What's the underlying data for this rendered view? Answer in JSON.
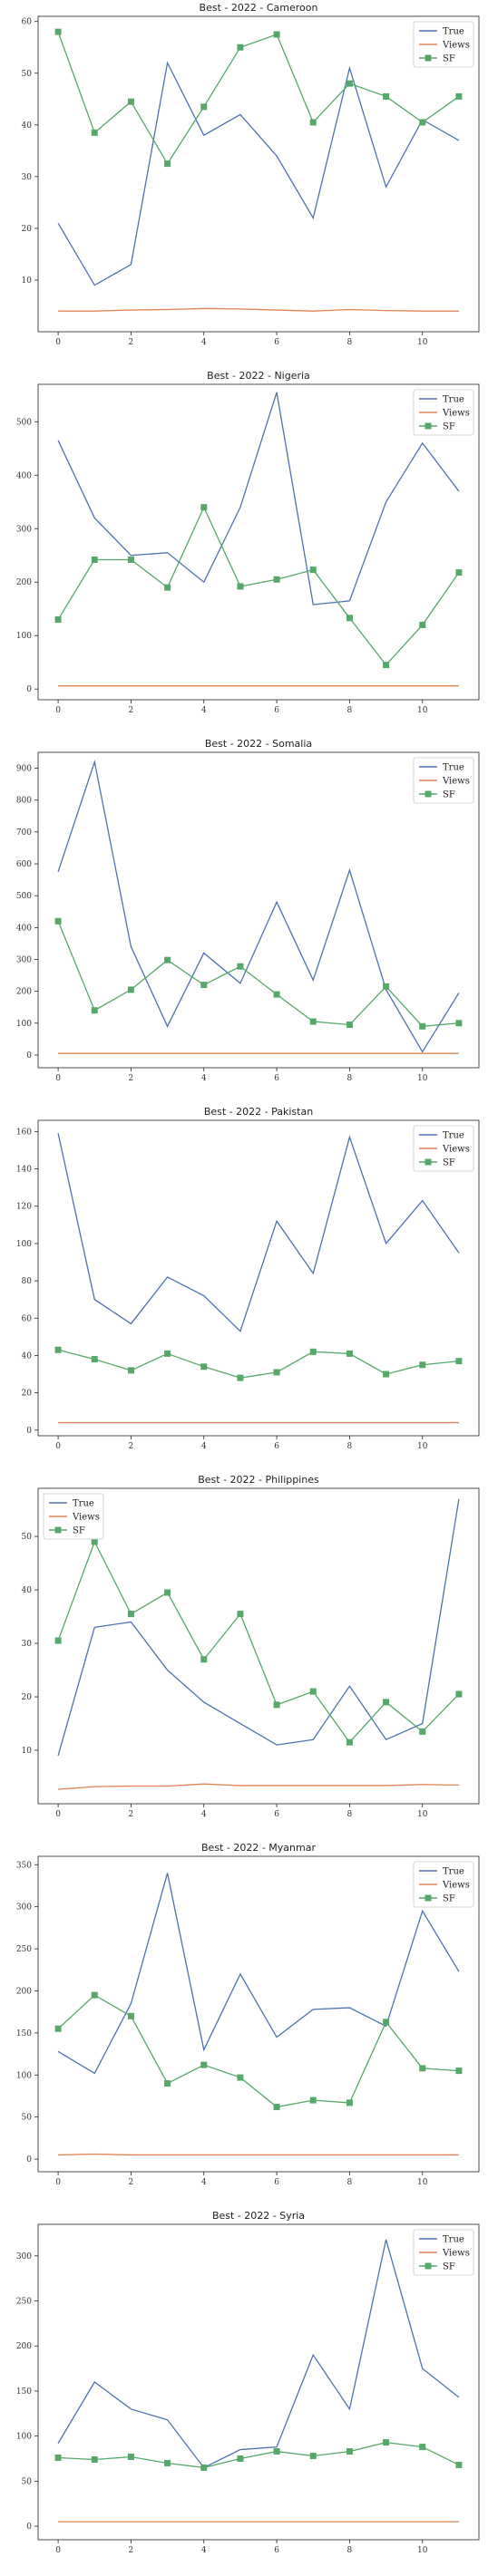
{
  "colors": {
    "True": "#4c72b0",
    "Views": "#dd8452",
    "SF": "#55a868"
  },
  "chart_data": [
    {
      "type": "line",
      "title": "Best - 2022 - Cameroon",
      "x": [
        0,
        1,
        2,
        3,
        4,
        5,
        6,
        7,
        8,
        9,
        10,
        11
      ],
      "xticks": [
        0,
        2,
        4,
        6,
        8,
        10
      ],
      "yticks": [
        10,
        20,
        30,
        40,
        50,
        60
      ],
      "ylim": [
        0,
        61
      ],
      "legend": "top-right",
      "series": [
        {
          "name": "True",
          "values": [
            21,
            9,
            13,
            52,
            38,
            42,
            34,
            22,
            51,
            28,
            41,
            37
          ]
        },
        {
          "name": "Views",
          "values": [
            4,
            4,
            4.2,
            4.3,
            4.5,
            4.4,
            4.2,
            4,
            4.3,
            4.1,
            4,
            4
          ]
        },
        {
          "name": "SF",
          "values": [
            58,
            38.5,
            44.5,
            32.5,
            43.5,
            55,
            57.5,
            40.5,
            48,
            45.5,
            40.5,
            45.5
          ]
        }
      ]
    },
    {
      "type": "line",
      "title": "Best - 2022 - Nigeria",
      "x": [
        0,
        1,
        2,
        3,
        4,
        5,
        6,
        7,
        8,
        9,
        10,
        11
      ],
      "xticks": [
        0,
        2,
        4,
        6,
        8,
        10
      ],
      "yticks": [
        0,
        100,
        200,
        300,
        400,
        500
      ],
      "ylim": [
        -20,
        570
      ],
      "legend": "top-right",
      "series": [
        {
          "name": "True",
          "values": [
            465,
            320,
            250,
            255,
            200,
            340,
            555,
            158,
            165,
            350,
            460,
            370
          ]
        },
        {
          "name": "Views",
          "values": [
            6,
            6,
            6,
            6,
            6,
            6,
            6,
            6,
            6,
            6,
            6,
            6
          ]
        },
        {
          "name": "SF",
          "values": [
            130,
            242,
            242,
            190,
            340,
            192,
            205,
            223,
            133,
            45,
            120,
            218
          ]
        }
      ]
    },
    {
      "type": "line",
      "title": "Best - 2022 - Somalia",
      "x": [
        0,
        1,
        2,
        3,
        4,
        5,
        6,
        7,
        8,
        9,
        10,
        11
      ],
      "xticks": [
        0,
        2,
        4,
        6,
        8,
        10
      ],
      "yticks": [
        0,
        100,
        200,
        300,
        400,
        500,
        600,
        700,
        800,
        900
      ],
      "ylim": [
        -40,
        950
      ],
      "legend": "top-right",
      "series": [
        {
          "name": "True",
          "values": [
            575,
            920,
            340,
            90,
            320,
            225,
            480,
            235,
            580,
            205,
            10,
            195
          ]
        },
        {
          "name": "Views",
          "values": [
            5,
            5,
            5,
            5,
            5,
            5,
            5,
            5,
            5,
            5,
            5,
            5
          ]
        },
        {
          "name": "SF",
          "values": [
            420,
            140,
            205,
            298,
            220,
            278,
            190,
            105,
            95,
            215,
            90,
            100
          ]
        }
      ]
    },
    {
      "type": "line",
      "title": "Best - 2022 - Pakistan",
      "x": [
        0,
        1,
        2,
        3,
        4,
        5,
        6,
        7,
        8,
        9,
        10,
        11
      ],
      "xticks": [
        0,
        2,
        4,
        6,
        8,
        10
      ],
      "yticks": [
        0,
        20,
        40,
        60,
        80,
        100,
        120,
        140,
        160
      ],
      "ylim": [
        -3,
        166
      ],
      "legend": "top-right",
      "series": [
        {
          "name": "True",
          "values": [
            159,
            70,
            57,
            82,
            72,
            53,
            112,
            84,
            157,
            100,
            123,
            95
          ]
        },
        {
          "name": "Views",
          "values": [
            4,
            4,
            4,
            4,
            4,
            4,
            4,
            4,
            4,
            4,
            4,
            4
          ]
        },
        {
          "name": "SF",
          "values": [
            43,
            38,
            32,
            41,
            34,
            28,
            31,
            42,
            41,
            30,
            35,
            37
          ]
        }
      ]
    },
    {
      "type": "line",
      "title": "Best - 2022 - Philippines",
      "x": [
        0,
        1,
        2,
        3,
        4,
        5,
        6,
        7,
        8,
        9,
        10,
        11
      ],
      "xticks": [
        0,
        2,
        4,
        6,
        8,
        10
      ],
      "yticks": [
        10,
        20,
        30,
        40,
        50
      ],
      "ylim": [
        0,
        59
      ],
      "legend": "top-left",
      "series": [
        {
          "name": "True",
          "values": [
            9,
            33,
            34,
            25,
            19,
            15,
            11,
            12,
            22,
            12,
            15,
            57
          ]
        },
        {
          "name": "Views",
          "values": [
            2.7,
            3.2,
            3.3,
            3.3,
            3.7,
            3.4,
            3.4,
            3.4,
            3.4,
            3.4,
            3.6,
            3.5
          ]
        },
        {
          "name": "SF",
          "values": [
            30.5,
            49,
            35.5,
            39.5,
            27,
            35.5,
            18.5,
            21,
            11.5,
            19,
            13.5,
            20.5
          ]
        }
      ]
    },
    {
      "type": "line",
      "title": "Best - 2022 - Myanmar",
      "x": [
        0,
        1,
        2,
        3,
        4,
        5,
        6,
        7,
        8,
        9,
        10,
        11
      ],
      "xticks": [
        0,
        2,
        4,
        6,
        8,
        10
      ],
      "yticks": [
        0,
        50,
        100,
        150,
        200,
        250,
        300,
        350
      ],
      "ylim": [
        -15,
        360
      ],
      "legend": "top-right",
      "series": [
        {
          "name": "True",
          "values": [
            128,
            102,
            185,
            340,
            130,
            220,
            145,
            178,
            180,
            158,
            295,
            223
          ]
        },
        {
          "name": "Views",
          "values": [
            5,
            6,
            5,
            5,
            5,
            5,
            5,
            5,
            5,
            5,
            5,
            5
          ]
        },
        {
          "name": "SF",
          "values": [
            155,
            195,
            170,
            90,
            112,
            97,
            62,
            70,
            67,
            163,
            108,
            105
          ]
        }
      ]
    },
    {
      "type": "line",
      "title": "Best - 2022 - Syria",
      "x": [
        0,
        1,
        2,
        3,
        4,
        5,
        6,
        7,
        8,
        9,
        10,
        11
      ],
      "xticks": [
        0,
        2,
        4,
        6,
        8,
        10
      ],
      "yticks": [
        0,
        50,
        100,
        150,
        200,
        250,
        300
      ],
      "ylim": [
        -15,
        335
      ],
      "legend": "top-right",
      "series": [
        {
          "name": "True",
          "values": [
            92,
            160,
            130,
            118,
            65,
            85,
            88,
            190,
            130,
            318,
            175,
            143
          ]
        },
        {
          "name": "Views",
          "values": [
            5,
            5,
            5,
            5,
            5,
            5,
            5,
            5,
            5,
            5,
            5,
            5
          ]
        },
        {
          "name": "SF",
          "values": [
            76,
            74,
            77,
            70,
            65,
            75,
            83,
            78,
            83,
            93,
            88,
            68
          ]
        }
      ]
    }
  ]
}
